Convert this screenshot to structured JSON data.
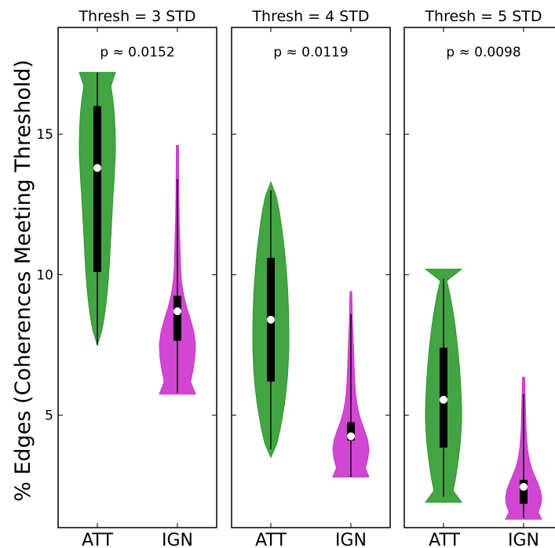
{
  "colors": {
    "ATT": "#2e9a2e",
    "IGN": "#cc33cc",
    "box": "#000000",
    "median": "#ffffff"
  },
  "chart_data": {
    "type": "violin",
    "ylabel": "% Edges (Coherences Meeting Threshold)",
    "ylim": [
      1.0,
      18.8
    ],
    "yticks": [
      5,
      10,
      15
    ],
    "categories": [
      "ATT",
      "IGN"
    ],
    "panels": [
      {
        "title": "Thresh = 3 STD",
        "pvalue_text": "p ≈  0.0152",
        "violins": [
          {
            "group": "ATT",
            "min": 7.5,
            "max": 17.2,
            "q1": 10.1,
            "q3": 16.0,
            "median": 13.8,
            "whisker_low": 7.5,
            "whisker_high": 17.2,
            "density": [
              0.0,
              0.24,
              0.38,
              0.48,
              0.56,
              0.62,
              0.67,
              0.71,
              0.75,
              0.79,
              0.83,
              0.87,
              0.92,
              0.96,
              1.0,
              1.0,
              0.98,
              0.94,
              0.86,
              0.75,
              1.0
            ]
          },
          {
            "group": "IGN",
            "min": 5.75,
            "max": 14.6,
            "q1": 7.65,
            "q3": 9.25,
            "median": 8.7,
            "whisker_low": 5.8,
            "whisker_high": 13.4,
            "density": [
              1.0,
              0.73,
              0.87,
              0.97,
              1.0,
              0.91,
              0.72,
              0.51,
              0.34,
              0.23,
              0.18,
              0.16,
              0.14,
              0.12,
              0.1,
              0.09,
              0.08,
              0.075,
              0.07,
              0.065,
              0.06
            ]
          }
        ]
      },
      {
        "title": "Thresh = 4 STD",
        "pvalue_text": "p ≈  0.0119",
        "violins": [
          {
            "group": "ATT",
            "min": 3.5,
            "max": 13.3,
            "q1": 6.2,
            "q3": 10.6,
            "median": 8.4,
            "whisker_low": 3.8,
            "whisker_high": 13.0,
            "density": [
              0.0,
              0.33,
              0.51,
              0.65,
              0.77,
              0.86,
              0.93,
              0.97,
              1.0,
              1.0,
              0.99,
              0.97,
              0.94,
              0.89,
              0.83,
              0.76,
              0.67,
              0.57,
              0.45,
              0.29,
              0.0
            ]
          },
          {
            "group": "IGN",
            "min": 2.8,
            "max": 9.4,
            "q1": 4.1,
            "q3": 4.75,
            "median": 4.25,
            "whisker_low": 2.8,
            "whisker_high": 8.6,
            "density": [
              1.0,
              0.8,
              0.94,
              1.0,
              0.93,
              0.76,
              0.57,
              0.42,
              0.32,
              0.26,
              0.22,
              0.2,
              0.18,
              0.16,
              0.14,
              0.12,
              0.1,
              0.08,
              0.07,
              0.06,
              0.05
            ]
          }
        ]
      },
      {
        "title": "Thresh = 5 STD",
        "pvalue_text": "p ≈  0.0098",
        "violins": [
          {
            "group": "ATT",
            "min": 1.9,
            "max": 10.2,
            "q1": 3.85,
            "q3": 7.4,
            "median": 5.55,
            "whisker_low": 2.1,
            "whisker_high": 9.85,
            "density": [
              1.0,
              0.53,
              0.66,
              0.76,
              0.85,
              0.92,
              0.97,
              1.0,
              1.0,
              0.98,
              0.95,
              0.91,
              0.86,
              0.8,
              0.73,
              0.65,
              0.56,
              0.45,
              0.33,
              0.18,
              1.0
            ]
          },
          {
            "group": "IGN",
            "min": 1.3,
            "max": 6.35,
            "q1": 1.85,
            "q3": 2.7,
            "median": 2.45,
            "whisker_low": 1.35,
            "whisker_high": 5.75,
            "density": [
              1.0,
              0.8,
              0.95,
              1.0,
              0.94,
              0.8,
              0.63,
              0.47,
              0.35,
              0.27,
              0.21,
              0.18,
              0.15,
              0.13,
              0.12,
              0.11,
              0.1,
              0.09,
              0.08,
              0.07,
              0.06
            ]
          }
        ]
      }
    ]
  }
}
